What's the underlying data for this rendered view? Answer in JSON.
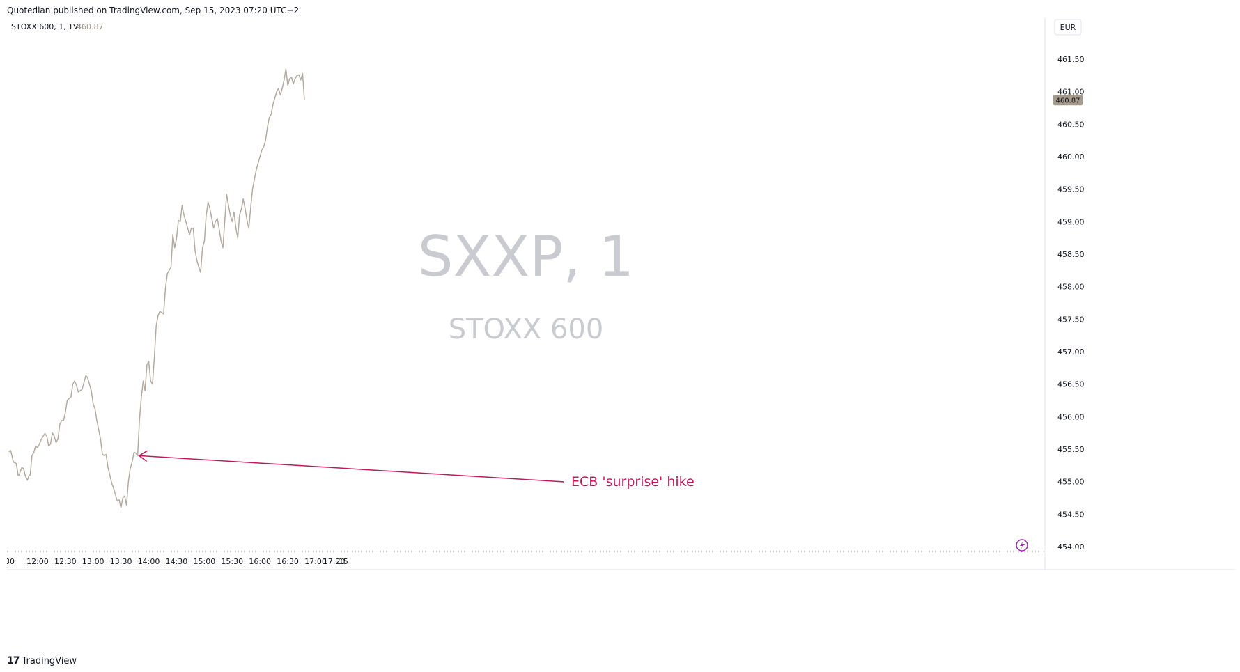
{
  "header": {
    "published_text": "Quotedian published on TradingView.com, Sep 15, 2023 07:20 UTC+2"
  },
  "legend": {
    "symbol_text": "STOXX 600, 1, TVC",
    "last_value": "460.87"
  },
  "currency_label": "EUR",
  "watermark": {
    "ticker": "SXXP, 1",
    "name": "STOXX 600"
  },
  "footer": {
    "brand": "TradingView",
    "logo_text": "17"
  },
  "annotation": {
    "text": "ECB 'surprise' hike",
    "color": "#c2185b"
  },
  "colors": {
    "line": "#b3aca2",
    "price_tag_bg": "#a39a8c",
    "grid_dots": "#9598a1",
    "axis_text": "#131722",
    "watermark": "#c9cbd1",
    "flash_icon": "#9c27b0"
  },
  "icons": {
    "flash": "lightning-icon"
  },
  "chart_data": {
    "type": "line",
    "title": "STOXX 600, 1, TVC",
    "xlabel": "",
    "ylabel": "",
    "xlim": [
      687,
      1807
    ],
    "ylim": [
      454.0,
      461.5
    ],
    "y_ticks": [
      "454.00",
      "454.50",
      "455.00",
      "455.50",
      "456.00",
      "456.50",
      "457.00",
      "457.50",
      "458.00",
      "458.50",
      "459.00",
      "459.50",
      "460.00",
      "460.50",
      "461.00",
      "461.50"
    ],
    "x_ticks": [
      {
        "t": 690,
        "label": "30"
      },
      {
        "t": 720,
        "label": "12:00"
      },
      {
        "t": 750,
        "label": "12:30"
      },
      {
        "t": 780,
        "label": "13:00"
      },
      {
        "t": 810,
        "label": "13:30"
      },
      {
        "t": 840,
        "label": "14:00"
      },
      {
        "t": 870,
        "label": "14:30"
      },
      {
        "t": 900,
        "label": "15:00"
      },
      {
        "t": 930,
        "label": "15:30"
      },
      {
        "t": 960,
        "label": "16:00"
      },
      {
        "t": 990,
        "label": "16:30"
      },
      {
        "t": 1020,
        "label": "17:00"
      },
      {
        "t": 1040,
        "label": "17:20"
      },
      {
        "t": 1050,
        "label": "15"
      }
    ],
    "grid": false,
    "series": [
      {
        "values": [
          [
            689,
            455.46
          ],
          [
            691,
            455.48
          ],
          [
            692,
            455.42
          ],
          [
            694,
            455.3
          ],
          [
            697,
            455.28
          ],
          [
            699,
            455.1
          ],
          [
            700,
            455.1
          ],
          [
            703,
            455.22
          ],
          [
            705,
            455.2
          ],
          [
            707,
            455.08
          ],
          [
            709,
            455.02
          ],
          [
            711,
            455.1
          ],
          [
            712,
            455.1
          ],
          [
            714,
            455.4
          ],
          [
            716,
            455.45
          ],
          [
            718,
            455.55
          ],
          [
            720,
            455.52
          ],
          [
            722,
            455.58
          ],
          [
            724,
            455.65
          ],
          [
            726,
            455.7
          ],
          [
            728,
            455.74
          ],
          [
            730,
            455.7
          ],
          [
            732,
            455.55
          ],
          [
            734,
            455.58
          ],
          [
            736,
            455.75
          ],
          [
            738,
            455.7
          ],
          [
            740,
            455.6
          ],
          [
            742,
            455.66
          ],
          [
            744,
            455.88
          ],
          [
            746,
            455.94
          ],
          [
            748,
            455.94
          ],
          [
            750,
            456.06
          ],
          [
            752,
            456.25
          ],
          [
            754,
            456.28
          ],
          [
            756,
            456.3
          ],
          [
            758,
            456.5
          ],
          [
            760,
            456.55
          ],
          [
            762,
            456.48
          ],
          [
            764,
            456.38
          ],
          [
            766,
            456.4
          ],
          [
            768,
            456.42
          ],
          [
            770,
            456.52
          ],
          [
            772,
            456.63
          ],
          [
            774,
            456.6
          ],
          [
            776,
            456.5
          ],
          [
            778,
            456.4
          ],
          [
            780,
            456.2
          ],
          [
            782,
            456.12
          ],
          [
            784,
            455.94
          ],
          [
            786,
            455.8
          ],
          [
            788,
            455.65
          ],
          [
            790,
            455.42
          ],
          [
            792,
            455.4
          ],
          [
            794,
            455.42
          ],
          [
            796,
            455.22
          ],
          [
            798,
            455.1
          ],
          [
            800,
            454.98
          ],
          [
            802,
            454.9
          ],
          [
            804,
            454.8
          ],
          [
            806,
            454.7
          ],
          [
            808,
            454.72
          ],
          [
            810,
            454.6
          ],
          [
            812,
            454.75
          ],
          [
            814,
            454.78
          ],
          [
            816,
            454.64
          ],
          [
            818,
            455.0
          ],
          [
            820,
            455.2
          ],
          [
            822,
            455.3
          ],
          [
            824,
            455.45
          ],
          [
            826,
            455.44
          ],
          [
            828,
            455.4
          ],
          [
            830,
            455.95
          ],
          [
            832,
            456.3
          ],
          [
            834,
            456.55
          ],
          [
            836,
            456.4
          ],
          [
            838,
            456.8
          ],
          [
            840,
            456.85
          ],
          [
            842,
            456.55
          ],
          [
            844,
            456.5
          ],
          [
            846,
            456.9
          ],
          [
            848,
            457.4
          ],
          [
            850,
            457.55
          ],
          [
            852,
            457.62
          ],
          [
            854,
            457.6
          ],
          [
            856,
            457.58
          ],
          [
            858,
            457.98
          ],
          [
            860,
            458.2
          ],
          [
            862,
            458.25
          ],
          [
            864,
            458.3
          ],
          [
            866,
            458.8
          ],
          [
            868,
            458.6
          ],
          [
            870,
            458.75
          ],
          [
            872,
            459.02
          ],
          [
            874,
            459.0
          ],
          [
            876,
            459.25
          ],
          [
            878,
            459.1
          ],
          [
            880,
            459.0
          ],
          [
            882,
            458.9
          ],
          [
            884,
            458.8
          ],
          [
            886,
            458.9
          ],
          [
            888,
            458.9
          ],
          [
            890,
            458.55
          ],
          [
            892,
            458.4
          ],
          [
            894,
            458.3
          ],
          [
            896,
            458.22
          ],
          [
            898,
            458.6
          ],
          [
            900,
            458.7
          ],
          [
            902,
            459.1
          ],
          [
            904,
            459.3
          ],
          [
            906,
            459.2
          ],
          [
            908,
            459.05
          ],
          [
            910,
            458.9
          ],
          [
            912,
            459.0
          ],
          [
            914,
            459.05
          ],
          [
            916,
            458.88
          ],
          [
            918,
            458.7
          ],
          [
            920,
            458.6
          ],
          [
            922,
            459.0
          ],
          [
            924,
            459.42
          ],
          [
            926,
            459.25
          ],
          [
            928,
            459.1
          ],
          [
            930,
            459.0
          ],
          [
            932,
            459.15
          ],
          [
            934,
            458.9
          ],
          [
            936,
            458.75
          ],
          [
            938,
            459.1
          ],
          [
            940,
            459.2
          ],
          [
            942,
            459.35
          ],
          [
            944,
            459.2
          ],
          [
            946,
            459.02
          ],
          [
            948,
            458.9
          ],
          [
            950,
            459.22
          ],
          [
            952,
            459.5
          ],
          [
            954,
            459.65
          ],
          [
            956,
            459.8
          ],
          [
            958,
            459.9
          ],
          [
            960,
            460.0
          ],
          [
            962,
            460.1
          ],
          [
            964,
            460.15
          ],
          [
            966,
            460.25
          ],
          [
            968,
            460.45
          ],
          [
            970,
            460.6
          ],
          [
            972,
            460.65
          ],
          [
            974,
            460.8
          ],
          [
            976,
            460.9
          ],
          [
            978,
            461.0
          ],
          [
            980,
            461.05
          ],
          [
            982,
            460.95
          ],
          [
            984,
            461.05
          ],
          [
            986,
            461.18
          ],
          [
            988,
            461.35
          ],
          [
            990,
            461.1
          ],
          [
            992,
            461.2
          ],
          [
            994,
            461.22
          ],
          [
            996,
            461.12
          ],
          [
            998,
            461.2
          ],
          [
            1000,
            461.25
          ],
          [
            1002,
            461.26
          ],
          [
            1004,
            461.18
          ],
          [
            1006,
            461.28
          ],
          [
            1008,
            460.87
          ]
        ]
      }
    ],
    "annotation": {
      "text": "ECB 'surprise' hike",
      "point": [
        828,
        455.4
      ]
    }
  }
}
